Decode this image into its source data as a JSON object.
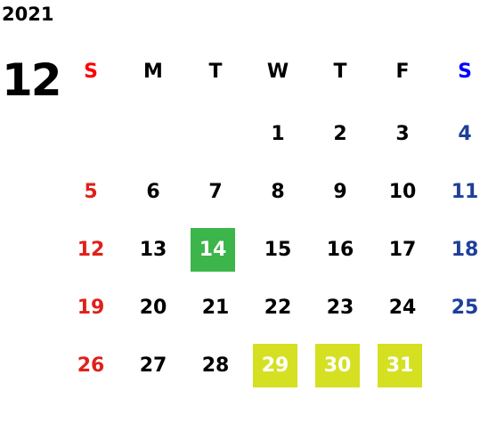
{
  "calendar": {
    "year": "2021",
    "month": "12",
    "weekdays": [
      "S",
      "M",
      "T",
      "W",
      "T",
      "F",
      "S"
    ],
    "weekday_colors": [
      "#ff0000",
      "#000000",
      "#000000",
      "#000000",
      "#000000",
      "#000000",
      "#0000ff"
    ],
    "day_colors": [
      "#e0201a",
      "#000000",
      "#000000",
      "#000000",
      "#000000",
      "#000000",
      "#1e3f9a"
    ],
    "weeks": [
      [
        null,
        null,
        null,
        "1",
        "2",
        "3",
        "4"
      ],
      [
        "5",
        "6",
        "7",
        "8",
        "9",
        "10",
        "11"
      ],
      [
        "12",
        "13",
        {
          "text": "14",
          "highlight": "#3cb54a"
        },
        "15",
        "16",
        "17",
        "18"
      ],
      [
        "19",
        "20",
        "21",
        "22",
        "23",
        "24",
        "25"
      ],
      [
        "26",
        "27",
        "28",
        {
          "text": "29",
          "highlight": "#d4e021"
        },
        {
          "text": "30",
          "highlight": "#d4e021"
        },
        {
          "text": "31",
          "highlight": "#d4e021"
        },
        null
      ]
    ]
  }
}
